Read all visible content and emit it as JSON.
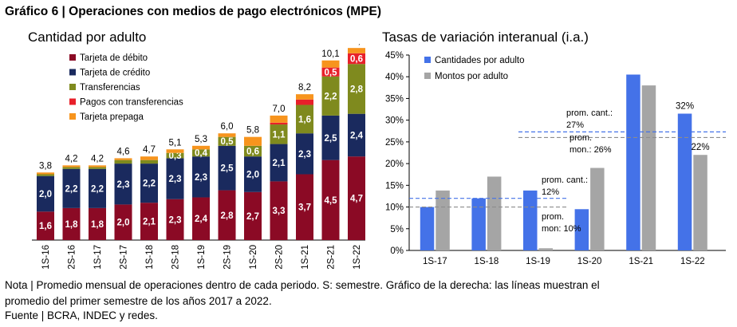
{
  "figure": {
    "title": "Gráfico 6 | Operaciones con medios de pago electrónicos (MPE)",
    "note_line1": "Nota | Promedio mensual de operaciones dentro de cada periodo. S: semestre. Gráfico de la derecha: las líneas muestran el",
    "note_line2": "promedio del primer semestre de los años 2017 a 2022.",
    "source": "Fuente | BCRA, INDEC y redes."
  },
  "chart_data": [
    {
      "type": "bar",
      "stacked": true,
      "title": "Cantidad por adulto",
      "categories": [
        "1S-16",
        "2S-16",
        "1S-17",
        "2S-17",
        "1S-18",
        "2S-18",
        "1S-19",
        "2S-19",
        "1S-20",
        "2S-20",
        "1S-21",
        "2S-21",
        "1S-22"
      ],
      "series": [
        {
          "name": "Tarjeta de débito",
          "color": "#8b0a25",
          "values": [
            1.6,
            1.8,
            1.8,
            2.0,
            2.1,
            2.3,
            2.4,
            2.8,
            2.7,
            3.3,
            3.7,
            4.5,
            4.7
          ],
          "labels": [
            "1,6",
            "1,8",
            "1,8",
            "2,0",
            "2,1",
            "2,3",
            "2,4",
            "2,8",
            "2,7",
            "3,3",
            "3,7",
            "4,5",
            "4,7"
          ]
        },
        {
          "name": "Tarjeta de crédito",
          "color": "#1a2a5e",
          "values": [
            2.0,
            2.2,
            2.2,
            2.3,
            2.2,
            2.3,
            2.3,
            2.5,
            2.0,
            2.1,
            2.3,
            2.5,
            2.4
          ],
          "labels": [
            "2,0",
            "2,2",
            "2,2",
            "2,3",
            "2,2",
            "2,3",
            "2,3",
            "2,5",
            "2,0",
            "2,1",
            "2,3",
            "2,5",
            "2,4"
          ]
        },
        {
          "name": "Transferencias",
          "color": "#7f8a1e",
          "values": [
            0.1,
            0.1,
            0.1,
            0.2,
            0.2,
            0.3,
            0.4,
            0.5,
            0.6,
            1.1,
            1.6,
            2.2,
            2.8
          ],
          "labels": [
            "",
            "",
            "",
            "",
            "",
            "0,3",
            "0,4",
            "0,5",
            "0,6",
            "1,1",
            "1,6",
            "2,2",
            "2,8"
          ]
        },
        {
          "name": "Pagos con transferencias",
          "color": "#e8202a",
          "values": [
            0,
            0,
            0,
            0,
            0,
            0,
            0,
            0,
            0,
            0.1,
            0.3,
            0.5,
            0.6
          ],
          "labels": [
            "",
            "",
            "",
            "",
            "",
            "",
            "",
            "",
            "",
            "",
            "",
            "0,5",
            "0,6"
          ]
        },
        {
          "name": "Tarjeta prepaga",
          "color": "#f7941d",
          "values": [
            0.1,
            0.1,
            0.1,
            0.1,
            0.2,
            0.2,
            0.2,
            0.2,
            0.5,
            0.4,
            0.3,
            0.4,
            0.3
          ],
          "labels": [
            "",
            "",
            "",
            "",
            "",
            "",
            "",
            "",
            "",
            "",
            "",
            "",
            ""
          ]
        }
      ],
      "totals": [
        "3,8",
        "4,2",
        "4,2",
        "4,6",
        "4,7",
        "5,1",
        "5,3",
        "6,0",
        "5,8",
        "7,0",
        "8,2",
        "10,1",
        "10,8"
      ],
      "total_values": [
        3.8,
        4.2,
        4.2,
        4.6,
        4.7,
        5.1,
        5.3,
        6.0,
        5.8,
        7.0,
        8.2,
        10.1,
        10.8
      ],
      "ylim": [
        0,
        11.5
      ]
    },
    {
      "type": "bar",
      "title": "Tasas de variación interanual (i.a.)",
      "categories": [
        "1S-17",
        "1S-18",
        "1S-19",
        "1S-20",
        "1S-21",
        "1S-22"
      ],
      "series": [
        {
          "name": "Cantidades por adulto",
          "color": "#4472e8",
          "values": [
            10,
            12,
            13.8,
            9.5,
            40.5,
            31.5
          ]
        },
        {
          "name": "Montos por adulto",
          "color": "#a5a5a5",
          "values": [
            13.8,
            17,
            0.5,
            19,
            38,
            22
          ]
        }
      ],
      "yticks": [
        "0%",
        "5%",
        "10%",
        "15%",
        "20%",
        "25%",
        "30%",
        "35%",
        "40%",
        "45%"
      ],
      "ylim": [
        0,
        45
      ],
      "bar_labels": [
        {
          "series": 0,
          "index": 5,
          "text": "32%"
        },
        {
          "series": 1,
          "index": 5,
          "text": "22%"
        }
      ],
      "reference_lines": [
        {
          "series": 0,
          "value": 27.3
        },
        {
          "series": 1,
          "value": 26
        },
        {
          "series": 0,
          "value": 12
        },
        {
          "series": 1,
          "value": 10
        }
      ],
      "annotations": [
        {
          "lines": [
            "prom. cant.:",
            "27%"
          ]
        },
        {
          "lines": [
            "prom.",
            "mon.: 26%"
          ]
        },
        {
          "lines": [
            "prom. cant.:",
            "12%"
          ]
        },
        {
          "lines": [
            "prom.",
            "mon: 10%"
          ]
        }
      ]
    }
  ]
}
